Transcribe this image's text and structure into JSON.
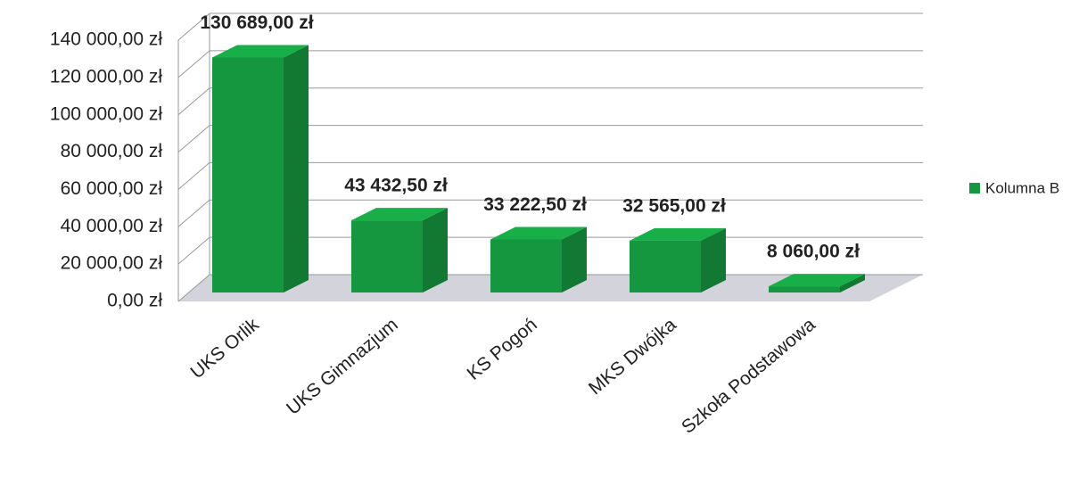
{
  "chart_data": {
    "type": "bar3d",
    "categories": [
      "UKS Orlik",
      "UKS Gimnazjum",
      "KS Pogoń",
      "MKS Dwójka",
      "Szkoła Podstawowa"
    ],
    "series": [
      {
        "name": "Kolumna B",
        "color": "#15973f",
        "values": [
          130689,
          43432.5,
          33222.5,
          32565,
          8060
        ],
        "value_labels": [
          "130 689,00 zł",
          "43 432,50 zł",
          "33 222,50 zł",
          "32 565,00 zł",
          "8 060,00 zł"
        ]
      }
    ],
    "ylim": [
      0,
      140000
    ],
    "yticks": [
      {
        "value": 0,
        "label": "0,00 zł"
      },
      {
        "value": 20000,
        "label": "20 000,00 zł"
      },
      {
        "value": 40000,
        "label": "40 000,00 zł"
      },
      {
        "value": 60000,
        "label": "60 000,00 zł"
      },
      {
        "value": 80000,
        "label": "80 000,00 zł"
      },
      {
        "value": 100000,
        "label": "100 000,00 zł"
      },
      {
        "value": 120000,
        "label": "120 000,00 zł"
      },
      {
        "value": 140000,
        "label": "140 000,00 zł"
      }
    ],
    "grid": true,
    "legend": "right"
  }
}
